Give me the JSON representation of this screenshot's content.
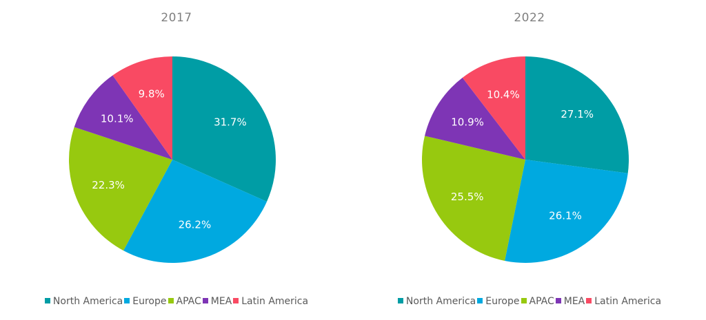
{
  "chart_data": [
    {
      "type": "pie",
      "title": "2017",
      "legend": "bottom",
      "slices": [
        {
          "label": "North America",
          "value": 31.7,
          "display": "31.7%",
          "color": "#009DA5"
        },
        {
          "label": "Europe",
          "value": 26.2,
          "display": "26.2%",
          "color": "#00A9E0"
        },
        {
          "label": "APAC",
          "value": 22.3,
          "display": "22.3%",
          "color": "#97C90F"
        },
        {
          "label": "MEA",
          "value": 10.1,
          "display": "10.1%",
          "color": "#7E35B5"
        },
        {
          "label": "Latin America",
          "value": 9.8,
          "display": "9.8%",
          "color": "#F94A63"
        }
      ]
    },
    {
      "type": "pie",
      "title": "2022",
      "legend": "bottom",
      "slices": [
        {
          "label": "North America",
          "value": 27.1,
          "display": "27.1%",
          "color": "#009DA5"
        },
        {
          "label": "Europe",
          "value": 26.1,
          "display": "26.1%",
          "color": "#00A9E0"
        },
        {
          "label": "APAC",
          "value": 25.5,
          "display": "25.5%",
          "color": "#97C90F"
        },
        {
          "label": "MEA",
          "value": 10.9,
          "display": "10.9%",
          "color": "#7E35B5"
        },
        {
          "label": "Latin America",
          "value": 10.4,
          "display": "10.4%",
          "color": "#F94A63"
        }
      ]
    }
  ]
}
